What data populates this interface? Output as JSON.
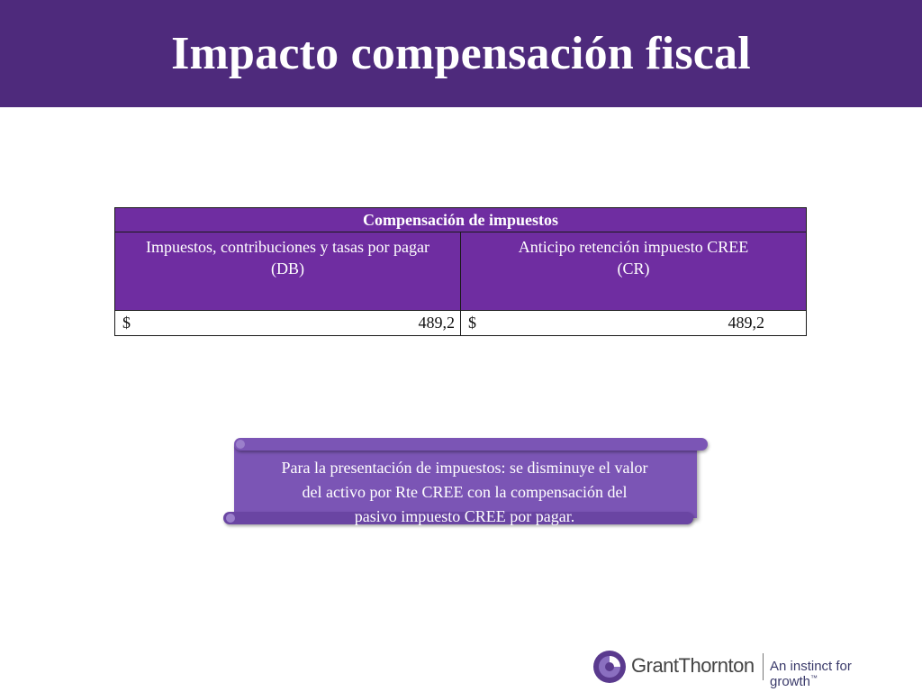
{
  "slide": {
    "title": "Impacto compensación fiscal"
  },
  "table": {
    "header": "Compensación de impuestos",
    "columns": [
      {
        "line1": "Impuestos, contribuciones y tasas por pagar",
        "line2": "(DB)"
      },
      {
        "line1": "Anticipo retención impuesto CREE",
        "line2": "(CR)"
      }
    ],
    "values": [
      {
        "currency": "$",
        "amount": "489,2"
      },
      {
        "currency": "$",
        "amount": "489,2"
      }
    ]
  },
  "note": {
    "line1": "Para la presentación de impuestos: se disminuye el valor",
    "line2": "del activo por Rte CREE con la compensación del",
    "line3": "pasivo impuesto CREE por pagar."
  },
  "logo": {
    "name": "GrantThornton",
    "tagline": "An instinct for growth",
    "trademark": "™"
  },
  "colors": {
    "title_bar": "#4e2a7c",
    "table_header": "#6f2da1",
    "scroll": "#7b55b5"
  }
}
